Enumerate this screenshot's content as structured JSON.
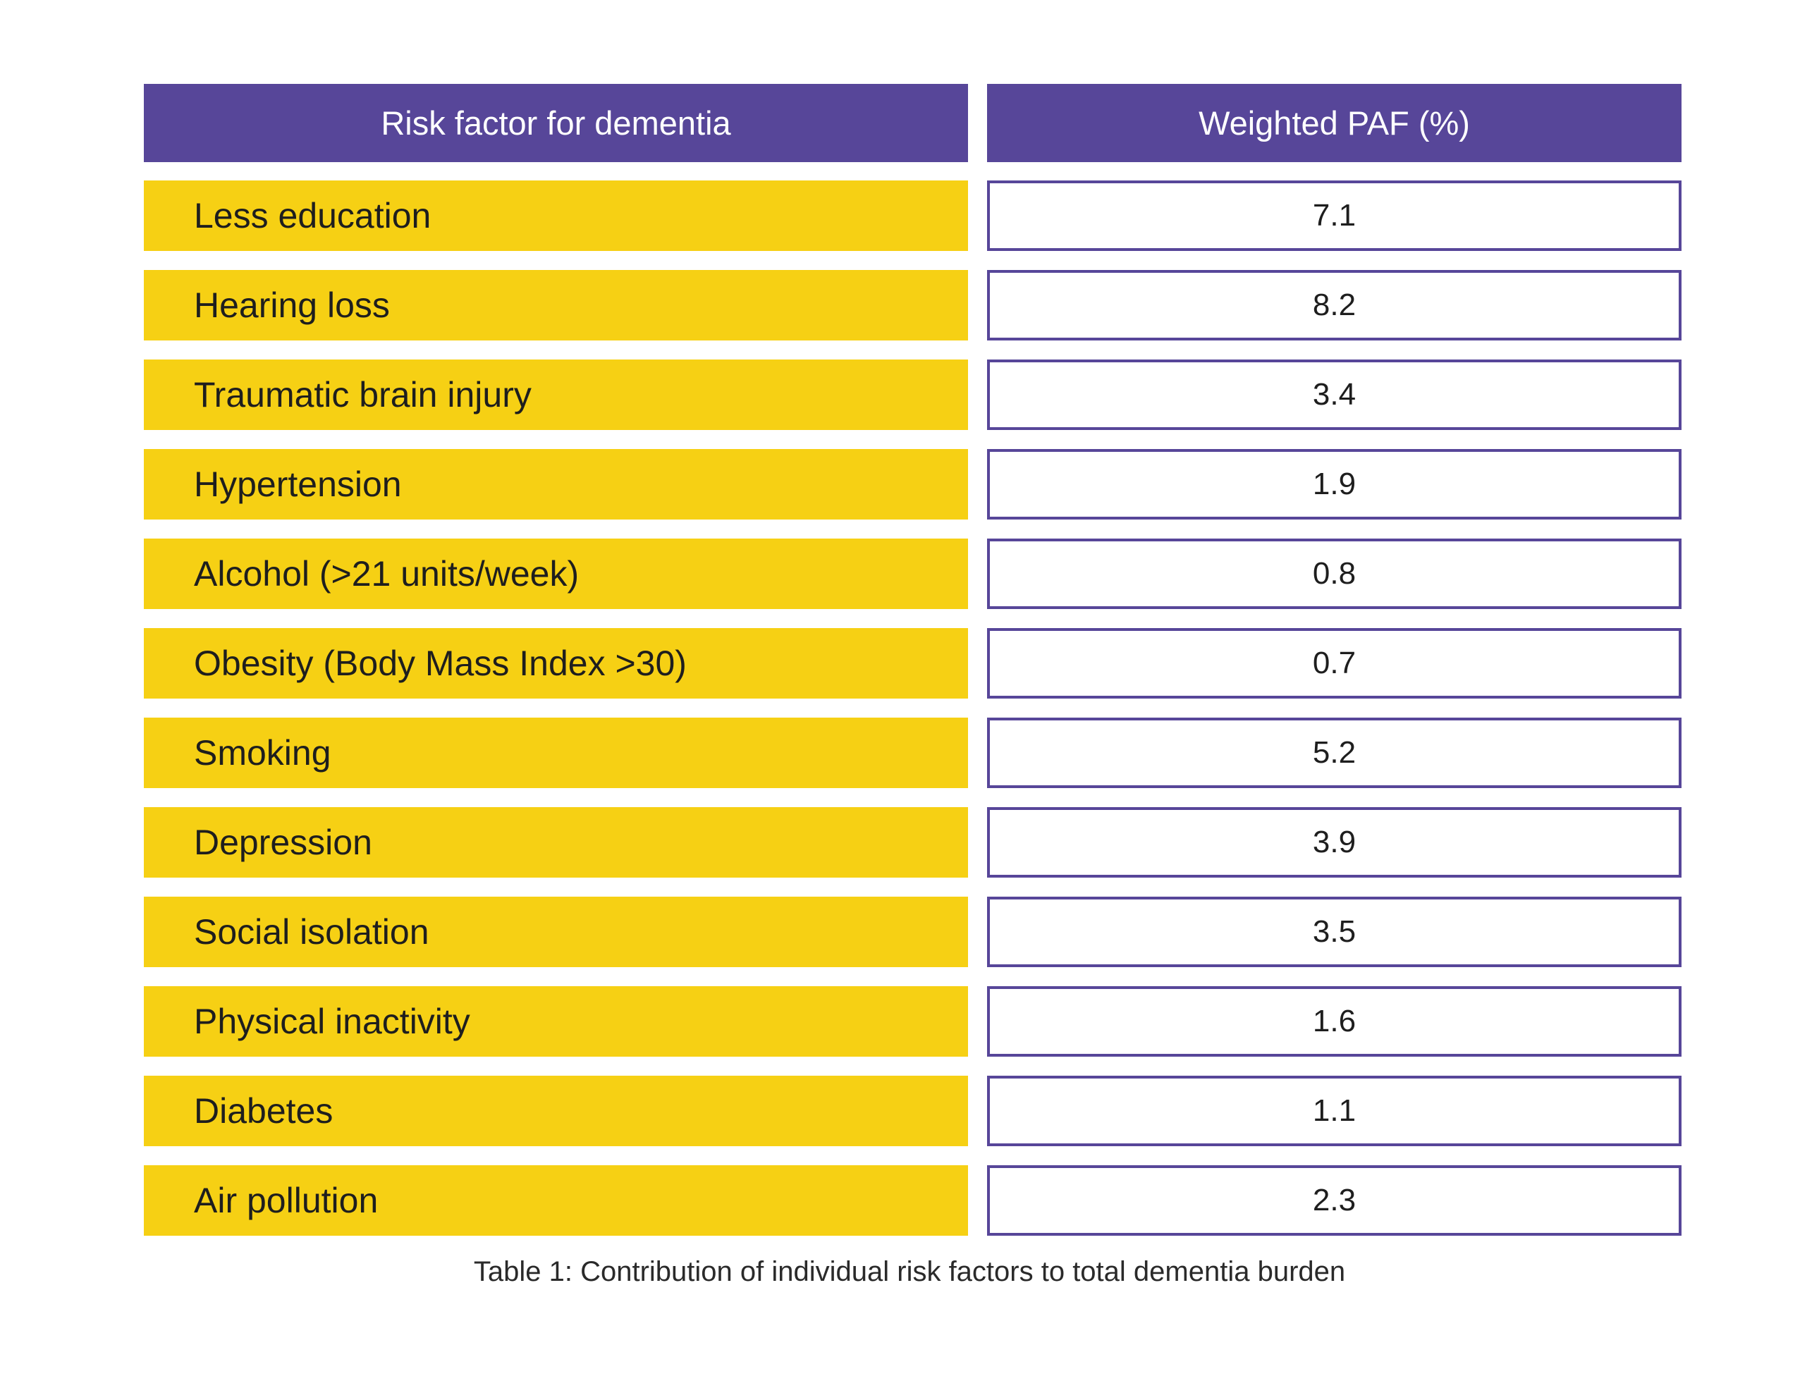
{
  "table": {
    "headers": {
      "factor": "Risk factor for dementia",
      "value": "Weighted PAF (%)"
    },
    "rows": [
      {
        "factor": "Less education",
        "value": "7.1"
      },
      {
        "factor": "Hearing loss",
        "value": "8.2"
      },
      {
        "factor": "Traumatic brain injury",
        "value": "3.4"
      },
      {
        "factor": "Hypertension",
        "value": "1.9"
      },
      {
        "factor": "Alcohol (>21 units/week)",
        "value": "0.8"
      },
      {
        "factor": "Obesity (Body Mass Index >30)",
        "value": "0.7"
      },
      {
        "factor": "Smoking",
        "value": "5.2"
      },
      {
        "factor": "Depression",
        "value": "3.9"
      },
      {
        "factor": "Social isolation",
        "value": "3.5"
      },
      {
        "factor": "Physical inactivity",
        "value": "1.6"
      },
      {
        "factor": "Diabetes",
        "value": "1.1"
      },
      {
        "factor": "Air pollution",
        "value": "2.3"
      }
    ]
  },
  "caption": "Table 1: Contribution of individual risk factors to total dementia burden",
  "colors": {
    "header_bg": "#574699",
    "factor_bg": "#f6d014",
    "value_border": "#574699"
  }
}
